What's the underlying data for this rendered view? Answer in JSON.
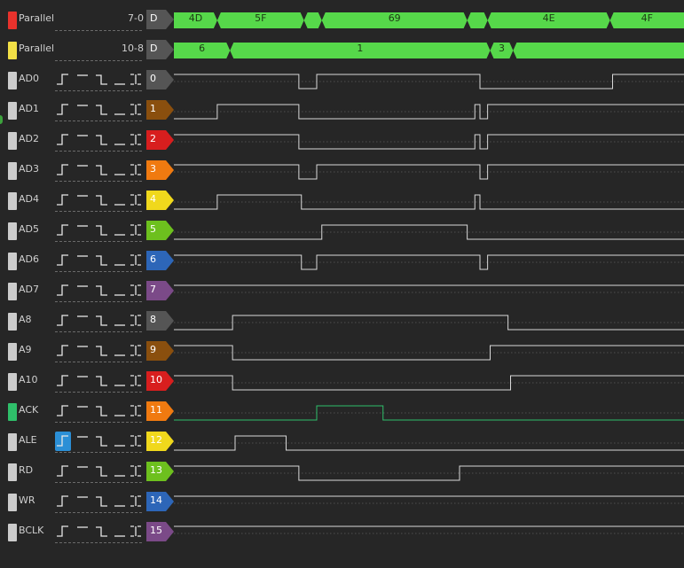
{
  "buses": [
    {
      "name": "Parallel",
      "range": "7-0",
      "badge": "D",
      "color": "#e8322c",
      "segments": [
        {
          "label": "4D",
          "end": 0.085
        },
        {
          "label": "5F",
          "end": 0.255
        },
        {
          "label": "",
          "end": 0.29
        },
        {
          "label": "69",
          "end": 0.575
        },
        {
          "label": "",
          "end": 0.615
        },
        {
          "label": "4E",
          "end": 0.855
        },
        {
          "label": "4F",
          "end": 1.0
        }
      ]
    },
    {
      "name": "Parallel",
      "range": "10-8",
      "badge": "D",
      "color": "#f2e046",
      "segments": [
        {
          "label": "6",
          "end": 0.11
        },
        {
          "label": "1",
          "end": 0.62
        },
        {
          "label": "3",
          "end": 0.665
        },
        {
          "label": "",
          "end": 1.0
        }
      ]
    }
  ],
  "channels": [
    {
      "name": "AD0",
      "num": "0",
      "color": "#555555",
      "tab": "#cccccc",
      "trigger_active": false,
      "wave": {
        "initial": 1,
        "edges": [
          0.245,
          0.28,
          0.6,
          0.86
        ]
      }
    },
    {
      "name": "AD1",
      "num": "1",
      "color": "#8a4f0e",
      "tab": "#cccccc",
      "trigger_active": false,
      "wave": {
        "initial": 0,
        "edges": [
          0.085,
          0.245,
          0.59,
          0.6,
          0.615
        ]
      }
    },
    {
      "name": "AD2",
      "num": "2",
      "color": "#d81e1e",
      "tab": "#cccccc",
      "trigger_active": false,
      "wave": {
        "initial": 1,
        "edges": [
          0.245,
          0.59,
          0.6,
          0.615
        ]
      }
    },
    {
      "name": "AD3",
      "num": "3",
      "color": "#f07a10",
      "tab": "#cccccc",
      "trigger_active": false,
      "wave": {
        "initial": 1,
        "edges": [
          0.245,
          0.28,
          0.6,
          0.615
        ]
      }
    },
    {
      "name": "AD4",
      "num": "4",
      "color": "#f0d81c",
      "tab": "#cccccc",
      "trigger_active": false,
      "wave": {
        "initial": 0,
        "edges": [
          0.085,
          0.25,
          0.59,
          0.6
        ]
      }
    },
    {
      "name": "AD5",
      "num": "5",
      "color": "#6dc01e",
      "tab": "#cccccc",
      "trigger_active": false,
      "wave": {
        "initial": 0,
        "edges": [
          0.29,
          0.575
        ]
      }
    },
    {
      "name": "AD6",
      "num": "6",
      "color": "#2d66b8",
      "tab": "#cccccc",
      "trigger_active": false,
      "wave": {
        "initial": 1,
        "edges": [
          0.25,
          0.28,
          0.6,
          0.615
        ]
      }
    },
    {
      "name": "AD7",
      "num": "7",
      "color": "#7b4a88",
      "tab": "#cccccc",
      "trigger_active": false,
      "wave": {
        "initial": 1,
        "edges": []
      }
    },
    {
      "name": "A8",
      "num": "8",
      "color": "#555555",
      "tab": "#cccccc",
      "trigger_active": false,
      "wave": {
        "initial": 0,
        "edges": [
          0.115,
          0.655
        ]
      }
    },
    {
      "name": "A9",
      "num": "9",
      "color": "#8a4f0e",
      "tab": "#cccccc",
      "trigger_active": false,
      "wave": {
        "initial": 1,
        "edges": [
          0.115,
          0.62
        ]
      }
    },
    {
      "name": "A10",
      "num": "10",
      "color": "#d81e1e",
      "tab": "#cccccc",
      "trigger_active": false,
      "wave": {
        "initial": 1,
        "edges": [
          0.115,
          0.66
        ]
      }
    },
    {
      "name": "ACK",
      "num": "11",
      "color": "#f07a10",
      "tab": "#2fbf6a",
      "trigger_active": false,
      "wave": {
        "initial": 0,
        "edges": [
          0.28,
          0.41
        ],
        "stroke": "#2fbf6a"
      }
    },
    {
      "name": "ALE",
      "num": "12",
      "color": "#f0d81c",
      "tab": "#cccccc",
      "trigger_active": true,
      "wave": {
        "initial": 0,
        "edges": [
          0.12,
          0.22
        ]
      }
    },
    {
      "name": "RD",
      "num": "13",
      "color": "#6dc01e",
      "tab": "#cccccc",
      "trigger_active": false,
      "wave": {
        "initial": 1,
        "edges": [
          0.245,
          0.56
        ]
      }
    },
    {
      "name": "WR",
      "num": "14",
      "color": "#2d66b8",
      "tab": "#cccccc",
      "trigger_active": false,
      "wave": {
        "initial": 1,
        "edges": []
      }
    },
    {
      "name": "BCLK",
      "num": "15",
      "color": "#7b4a88",
      "tab": "#cccccc",
      "trigger_active": false,
      "wave": {
        "initial": 1,
        "edges": []
      }
    }
  ],
  "style": {
    "bus_fill": "#56d84a",
    "wave_stroke": "#d8d8d8",
    "badge_bus_color": "#555555"
  },
  "trigger_icons": [
    "rising-edge-icon",
    "high-level-icon",
    "falling-edge-icon",
    "low-level-icon",
    "any-edge-icon"
  ]
}
